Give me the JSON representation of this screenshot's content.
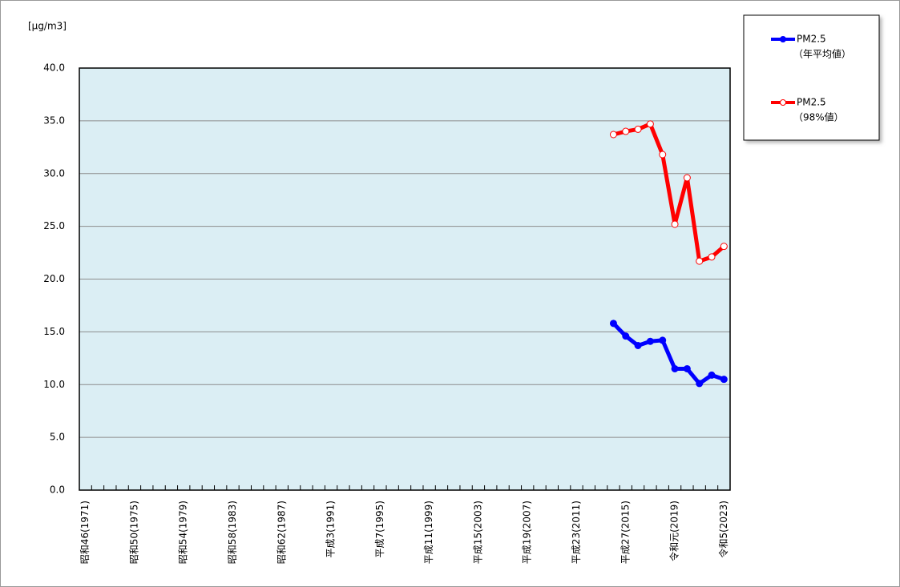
{
  "chart_data": {
    "type": "line",
    "y_label": "[μg/m3]",
    "categories": [
      "昭和46(1971)",
      null,
      null,
      null,
      "昭和50(1975)",
      null,
      null,
      null,
      "昭和54(1979)",
      null,
      null,
      null,
      "昭和58(1983)",
      null,
      null,
      null,
      "昭和62(1987)",
      null,
      null,
      null,
      "平成3(1991)",
      null,
      null,
      null,
      "平成7(1995)",
      null,
      null,
      null,
      "平成11(1999)",
      null,
      null,
      null,
      "平成15(2003)",
      null,
      null,
      null,
      "平成19(2007)",
      null,
      null,
      null,
      "平成23(2011)",
      null,
      null,
      null,
      "平成27(2015)",
      null,
      null,
      null,
      "令和元(2019)",
      null,
      null,
      null,
      "令和5(2023)"
    ],
    "series": [
      {
        "name": "PM2.5",
        "name_sub": "（年平均値）",
        "color": "#0000ff",
        "marker_fill": "#0000ff",
        "values": [
          null,
          null,
          null,
          null,
          null,
          null,
          null,
          null,
          null,
          null,
          null,
          null,
          null,
          null,
          null,
          null,
          null,
          null,
          null,
          null,
          null,
          null,
          null,
          null,
          null,
          null,
          null,
          null,
          null,
          null,
          null,
          null,
          null,
          null,
          null,
          null,
          null,
          null,
          null,
          null,
          null,
          null,
          null,
          15.8,
          14.6,
          13.7,
          14.1,
          14.2,
          11.5,
          11.5,
          10.1,
          10.9,
          10.5
        ]
      },
      {
        "name": "PM2.5",
        "name_sub": "（98%値）",
        "color": "#ff0000",
        "marker_fill": "#ffffff",
        "values": [
          null,
          null,
          null,
          null,
          null,
          null,
          null,
          null,
          null,
          null,
          null,
          null,
          null,
          null,
          null,
          null,
          null,
          null,
          null,
          null,
          null,
          null,
          null,
          null,
          null,
          null,
          null,
          null,
          null,
          null,
          null,
          null,
          null,
          null,
          null,
          null,
          null,
          null,
          null,
          null,
          null,
          null,
          null,
          33.7,
          34.0,
          34.2,
          34.7,
          31.8,
          25.2,
          29.6,
          21.7,
          22.1,
          23.1
        ]
      }
    ],
    "ylim": [
      0,
      40
    ],
    "yticks": [
      {
        "value": 0,
        "label": "0.0"
      },
      {
        "value": 5,
        "label": "5.0"
      },
      {
        "value": 10,
        "label": "10.0"
      },
      {
        "value": 15,
        "label": "15.0"
      },
      {
        "value": 20,
        "label": "20.0"
      },
      {
        "value": 25,
        "label": "25.0"
      },
      {
        "value": 30,
        "label": "30.0"
      },
      {
        "value": 35,
        "label": "35.0"
      },
      {
        "value": 40,
        "label": "40.0"
      }
    ],
    "grid": true,
    "plot_background": "#dbeef4"
  }
}
